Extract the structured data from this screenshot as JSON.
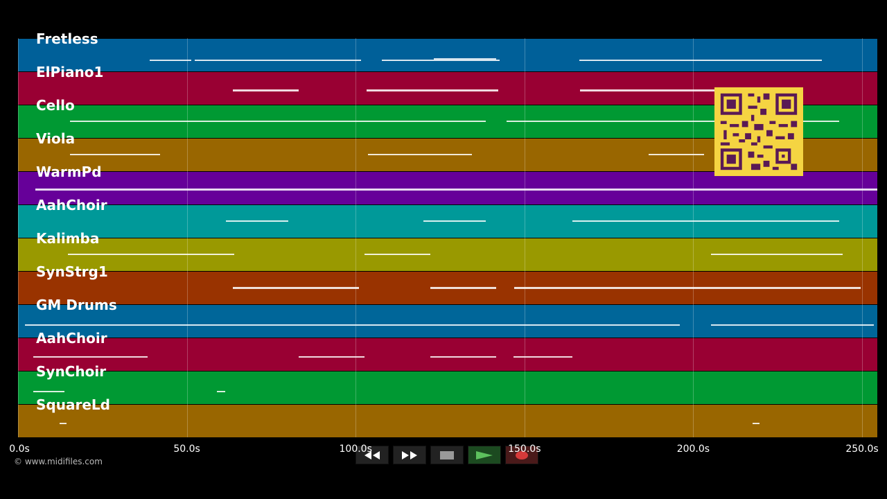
{
  "tracks": [
    {
      "label": "Fretless",
      "color": "#006099"
    },
    {
      "label": "ElPiano1",
      "color": "#990033"
    },
    {
      "label": "Cello",
      "color": "#009933"
    },
    {
      "label": "Viola",
      "color": "#996600"
    },
    {
      "label": "WarmPd",
      "color": "#660099"
    },
    {
      "label": "AahChoir",
      "color": "#009999"
    },
    {
      "label": "Kalimba",
      "color": "#999900"
    },
    {
      "label": "SynStrg1",
      "color": "#993300"
    },
    {
      "label": "GM Drums",
      "color": "#006699"
    },
    {
      "label": "AahChoir",
      "color": "#990033"
    },
    {
      "label": "SynChoir",
      "color": "#009933"
    },
    {
      "label": "SquareLd",
      "color": "#996600"
    }
  ],
  "time_axis": {
    "ticks": [
      "0.0s",
      "50.0s",
      "100.0s",
      "150.0s",
      "200.0s",
      "250.0s"
    ],
    "tick_values": [
      0,
      50,
      100,
      150,
      200,
      250
    ]
  },
  "copyright": "© www.midifiles.com",
  "transport": {
    "rewind_icon": "rewind-icon",
    "forward_icon": "fast-forward-icon",
    "stop_icon": "stop-icon",
    "play_icon": "play-icon",
    "record_icon": "record-icon"
  },
  "qr_icon": "qr-code-icon"
}
